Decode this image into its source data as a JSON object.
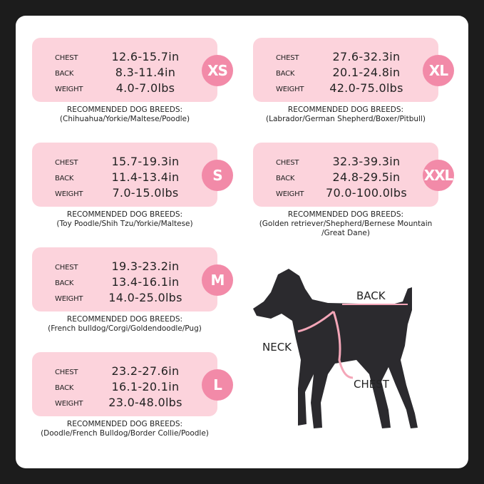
{
  "labels": {
    "chest": "CHEST",
    "back": "BACK",
    "weight": "WEIGHT",
    "breeds_heading": "RECOMMENDED DOG BREEDS:"
  },
  "sizes": [
    {
      "size": "XS",
      "chest": "12.6-15.7in",
      "back": "8.3-11.4in",
      "weight": "4.0-7.0lbs",
      "breeds": [
        "(Chihuahua/Yorkie/Maltese/Poodle)"
      ]
    },
    {
      "size": "XL",
      "chest": "27.6-32.3in",
      "back": "20.1-24.8in",
      "weight": "42.0-75.0lbs",
      "breeds": [
        "(Labrador/German Shepherd/Boxer/Pitbull)"
      ]
    },
    {
      "size": "S",
      "chest": "15.7-19.3in",
      "back": "11.4-13.4in",
      "weight": "7.0-15.0lbs",
      "breeds": [
        "(Toy Poodle/Shih Tzu/Yorkie/Maltese)"
      ]
    },
    {
      "size": "XXL",
      "chest": "32.3-39.3in",
      "back": "24.8-29.5in",
      "weight": "70.0-100.0lbs",
      "breeds": [
        "(Golden retriever/Shepherd/Bernese Mountain",
        "/Great Dane)"
      ]
    },
    {
      "size": "M",
      "chest": "19.3-23.2in",
      "back": "13.4-16.1in",
      "weight": "14.0-25.0lbs",
      "breeds": [
        "(French bulldog/Corgi/Goldendoodle/Pug)"
      ]
    },
    {
      "size": "L",
      "chest": "23.2-27.6in",
      "back": "16.1-20.1in",
      "weight": "23.0-48.0lbs",
      "breeds": [
        "(Doodle/French Bulldog/Border Collie/Poodle)"
      ]
    }
  ],
  "diagram": {
    "back": "BACK",
    "neck": "NECK",
    "chest": "CHEST"
  },
  "colors": {
    "card": "#fcd3dc",
    "badge": "#f28aa8",
    "frame": "#1c1c1c",
    "harness": "#f4a6b8"
  }
}
